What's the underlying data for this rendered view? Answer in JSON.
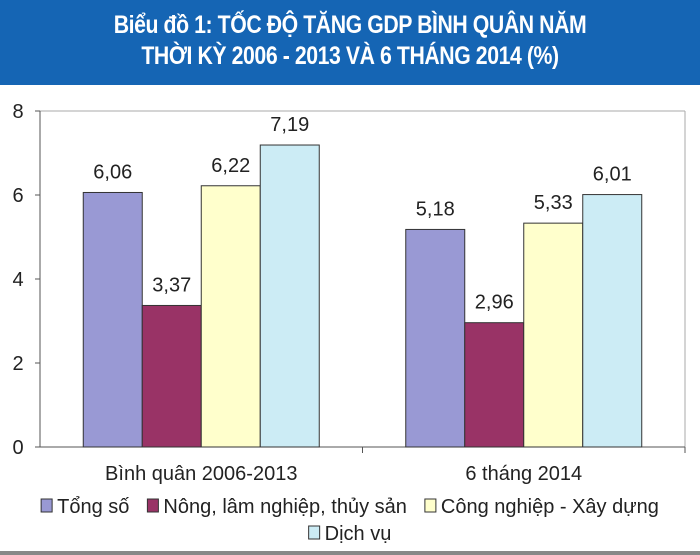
{
  "chart_data": {
    "type": "bar",
    "title": [
      "Biểu đồ 1: TỐC ĐỘ TĂNG GDP BÌNH QUÂN NĂM",
      "THỜI KỲ 2006 - 2013 VÀ 6 THÁNG 2014 (%)"
    ],
    "categories": [
      "Bình quân 2006-2013",
      "6 tháng 2014"
    ],
    "series": [
      {
        "name": "Tổng số",
        "values": [
          6.06,
          5.18
        ],
        "labels": [
          "6,06",
          "5,18"
        ],
        "color": "#9999d4"
      },
      {
        "name": "Nông, lâm nghiệp, thủy sản",
        "values": [
          3.37,
          2.96
        ],
        "labels": [
          "3,37",
          "2,96"
        ],
        "color": "#993366"
      },
      {
        "name": "Công nghiệp - Xây dựng",
        "values": [
          6.22,
          5.33
        ],
        "labels": [
          "6,22",
          "5,33"
        ],
        "color": "#ffffcc"
      },
      {
        "name": "Dịch vụ",
        "values": [
          7.19,
          6.01
        ],
        "labels": [
          "7,19",
          "6,01"
        ],
        "color": "#ccecf5"
      }
    ],
    "ylim": [
      0,
      8
    ],
    "yticks": [
      "0",
      "2",
      "4",
      "6",
      "8"
    ],
    "grid": false,
    "legend": "bottom"
  }
}
